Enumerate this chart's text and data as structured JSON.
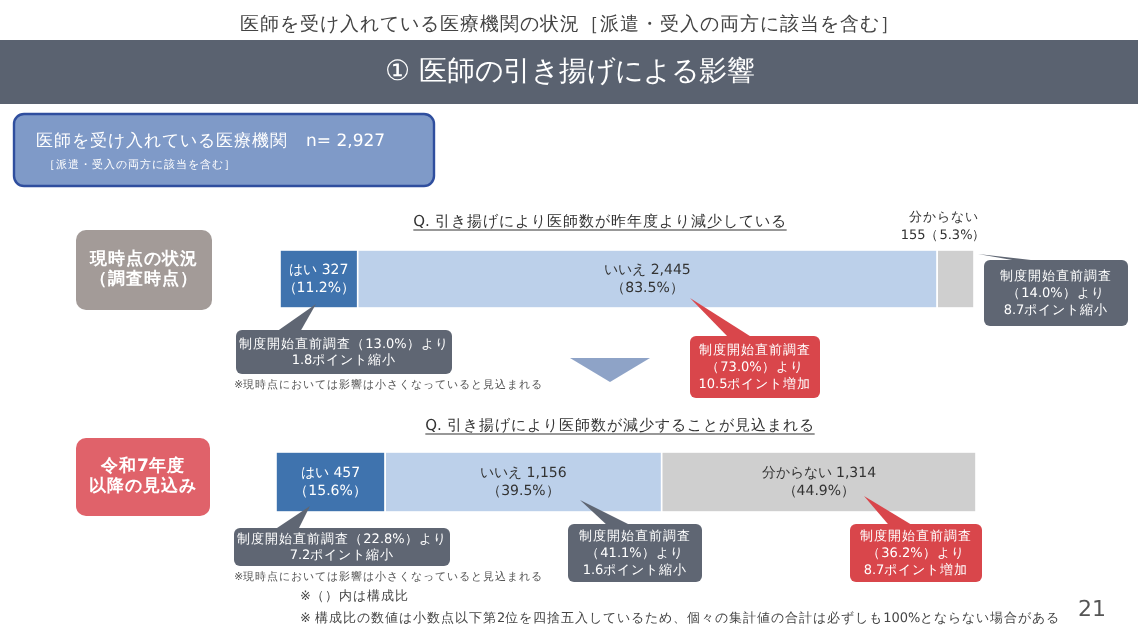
{
  "chart_data": [
    {
      "type": "bar",
      "orientation": "horizontal",
      "stacked": true,
      "title": "Q. 引き揚げにより医師数が昨年度より減少している",
      "categories": [
        "現時点の状況（調査時点）"
      ],
      "series": [
        {
          "color": "#3f73ae",
          "values": [
            11.2
          ],
          "value_labels": [
            "はい 327\n（11.2%）"
          ]
        },
        {
          "color": "#bcd0ea",
          "values": [
            83.5
          ],
          "value_labels": [
            "いいえ 2,445\n（83.5%）"
          ]
        },
        {
          "color": "#cfcfcf",
          "values": [
            5.3
          ],
          "value_labels": [
            "分からない\n155（5.3%）"
          ]
        }
      ],
      "annotations": [
        "医師を受け入れている医療機関の状況［派遣・受入の両方に該当を含む］",
        "① 医師の引き揚げによる影響",
        "医師を受け入れている医療機関　n= 2,927",
        "［派遣・受入の両方に該当を含む］",
        "制度開始直前調査（13.0%）より1.8ポイント縮小",
        "※現時点においては影響は小さくなっていると見込まれる",
        "制度開始直前調査（73.0%）より10.5ポイント増加",
        "制度開始直前調査（14.0%）より8.7ポイント縮小"
      ]
    },
    {
      "type": "bar",
      "orientation": "horizontal",
      "stacked": true,
      "title": "Q. 引き揚げにより医師数が減少することが見込まれる",
      "categories": [
        "令和7年度以降の見込み"
      ],
      "series": [
        {
          "color": "#3f73ae",
          "values": [
            15.6
          ],
          "value_labels": [
            "はい 457\n（15.6%）"
          ]
        },
        {
          "color": "#bcd0ea",
          "values": [
            39.5
          ],
          "value_labels": [
            "いいえ 1,156\n（39.5%）"
          ]
        },
        {
          "color": "#cfcfcf",
          "values": [
            44.9
          ],
          "value_labels": [
            "分からない 1,314\n（44.9%）"
          ]
        }
      ],
      "annotations": [
        "制度開始直前調査（22.8%）より7.2ポイント縮小",
        "※現時点においては影響は小さくなっていると見込まれる",
        "制度開始直前調査（41.1%）より1.6ポイント縮小",
        "制度開始直前調査（36.2%）より8.7ポイント増加",
        "※（）内は構成比",
        "※ 構成比の数値は小数点以下第2位を四捨五入しているため、個々の集計値の合計は必ずしも100%とならない場合がある",
        "21"
      ]
    }
  ]
}
